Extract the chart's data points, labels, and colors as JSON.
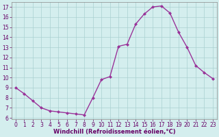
{
  "x": [
    0,
    1,
    2,
    3,
    4,
    5,
    6,
    7,
    8,
    9,
    10,
    11,
    12,
    13,
    14,
    15,
    16,
    17,
    18,
    19,
    20,
    21,
    22,
    23
  ],
  "y": [
    9.0,
    8.4,
    7.7,
    7.0,
    6.7,
    6.6,
    6.5,
    6.4,
    6.3,
    8.0,
    9.8,
    10.1,
    13.1,
    13.3,
    15.3,
    16.3,
    17.0,
    17.1,
    16.4,
    14.5,
    13.0,
    11.2,
    10.5,
    9.9
  ],
  "line_color": "#993399",
  "marker": "D",
  "marker_size": 2.0,
  "bg_color": "#d4eeee",
  "grid_color": "#aad0d0",
  "xlabel": "Windchill (Refroidissement éolien,°C)",
  "xlabel_color": "#660066",
  "tick_color": "#660066",
  "ylim": [
    5.9,
    17.5
  ],
  "xlim": [
    -0.5,
    23.5
  ],
  "yticks": [
    6,
    7,
    8,
    9,
    10,
    11,
    12,
    13,
    14,
    15,
    16,
    17
  ],
  "xticks": [
    0,
    1,
    2,
    3,
    4,
    5,
    6,
    7,
    8,
    9,
    10,
    11,
    12,
    13,
    14,
    15,
    16,
    17,
    18,
    19,
    20,
    21,
    22,
    23
  ],
  "spine_color": "#888888",
  "tick_fontsize": 5.5,
  "xlabel_fontsize": 6.0,
  "linewidth": 1.0
}
